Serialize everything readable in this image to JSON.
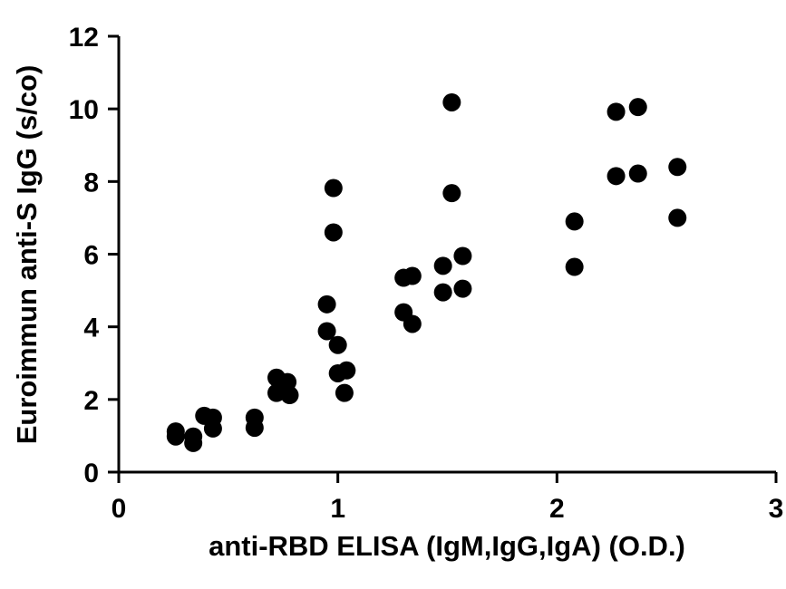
{
  "chart_data": {
    "type": "scatter",
    "title": "",
    "xlabel": "anti-RBD ELISA (IgM,IgG,IgA) (O.D.)",
    "ylabel": "Euroimmun anti-S IgG (s/co)",
    "xlim": [
      0,
      3
    ],
    "ylim": [
      0,
      12
    ],
    "xticks": [
      0,
      1,
      2,
      3
    ],
    "yticks": [
      0,
      2,
      4,
      6,
      8,
      10,
      12
    ],
    "grid": false,
    "legend": "none",
    "marker_color": "#000000",
    "points": [
      {
        "x": 0.26,
        "y": 1.12
      },
      {
        "x": 0.26,
        "y": 0.98
      },
      {
        "x": 0.34,
        "y": 0.98
      },
      {
        "x": 0.34,
        "y": 0.8
      },
      {
        "x": 0.39,
        "y": 1.55
      },
      {
        "x": 0.43,
        "y": 1.5
      },
      {
        "x": 0.43,
        "y": 1.2
      },
      {
        "x": 0.62,
        "y": 1.5
      },
      {
        "x": 0.62,
        "y": 1.22
      },
      {
        "x": 0.72,
        "y": 2.6
      },
      {
        "x": 0.72,
        "y": 2.18
      },
      {
        "x": 0.77,
        "y": 2.48
      },
      {
        "x": 0.78,
        "y": 2.12
      },
      {
        "x": 0.95,
        "y": 4.62
      },
      {
        "x": 0.95,
        "y": 3.88
      },
      {
        "x": 0.98,
        "y": 7.82
      },
      {
        "x": 0.98,
        "y": 6.6
      },
      {
        "x": 1.0,
        "y": 3.5
      },
      {
        "x": 1.0,
        "y": 2.72
      },
      {
        "x": 1.04,
        "y": 2.8
      },
      {
        "x": 1.03,
        "y": 2.18
      },
      {
        "x": 1.3,
        "y": 5.35
      },
      {
        "x": 1.3,
        "y": 4.4
      },
      {
        "x": 1.34,
        "y": 5.4
      },
      {
        "x": 1.34,
        "y": 4.08
      },
      {
        "x": 1.48,
        "y": 5.68
      },
      {
        "x": 1.48,
        "y": 4.95
      },
      {
        "x": 1.52,
        "y": 10.18
      },
      {
        "x": 1.52,
        "y": 7.68
      },
      {
        "x": 1.57,
        "y": 5.95
      },
      {
        "x": 1.57,
        "y": 5.05
      },
      {
        "x": 2.08,
        "y": 6.9
      },
      {
        "x": 2.08,
        "y": 5.65
      },
      {
        "x": 2.27,
        "y": 9.92
      },
      {
        "x": 2.27,
        "y": 8.15
      },
      {
        "x": 2.37,
        "y": 10.05
      },
      {
        "x": 2.37,
        "y": 8.22
      },
      {
        "x": 2.55,
        "y": 8.4
      },
      {
        "x": 2.55,
        "y": 7.0
      }
    ]
  }
}
